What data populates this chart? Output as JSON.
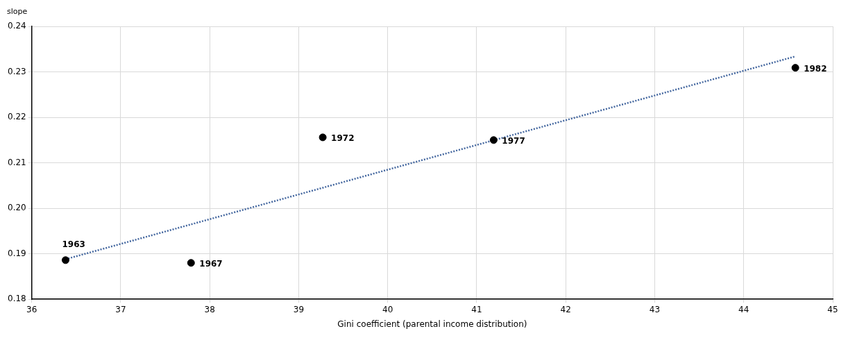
{
  "chart_data": {
    "type": "scatter",
    "xlabel": "Gini coefficient (parental income distribution)",
    "ylabel": "slope",
    "series": [
      {
        "color": "#000000",
        "x": [
          36.38,
          37.79,
          39.27,
          41.19,
          44.58
        ],
        "values": [
          0.1886,
          0.188,
          0.2156,
          0.215,
          0.2309
        ],
        "marker": "circle"
      },
      {
        "type": "line",
        "color": "#44679f",
        "x": [
          36.38,
          44.58
        ],
        "values": [
          0.1888,
          0.2334
        ],
        "line_style": "dotted",
        "marker": "none"
      }
    ],
    "annotations": [
      {
        "text": "1963",
        "x": 36.38,
        "y": 0.1886
      },
      {
        "text": "1967",
        "x": 37.79,
        "y": 0.188
      },
      {
        "text": "1972",
        "x": 39.27,
        "y": 0.2156
      },
      {
        "text": "1977",
        "x": 41.19,
        "y": 0.215
      },
      {
        "text": "1982",
        "x": 44.58,
        "y": 0.2309
      }
    ],
    "xlim": [
      36,
      45
    ],
    "xticks": [
      36,
      37,
      38,
      39,
      40,
      41,
      42,
      43,
      44,
      45
    ],
    "ylim": [
      0.18,
      0.24
    ],
    "yticks": [
      0.18,
      0.19,
      {
        "value": 0.2,
        "label": "0.20"
      },
      0.21,
      0.22,
      0.23,
      0.24
    ],
    "grid": true,
    "legend": false
  }
}
